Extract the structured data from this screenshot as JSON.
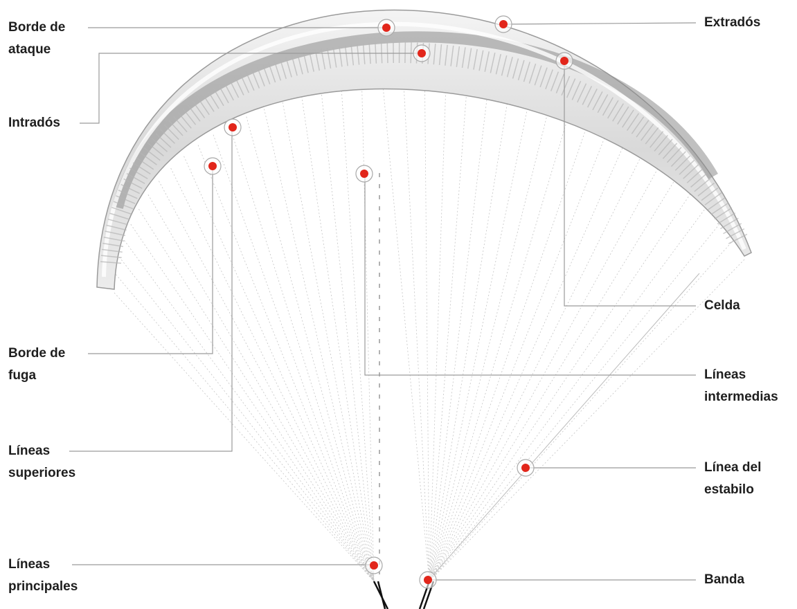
{
  "labels": [
    {
      "lines": [
        "Borde de",
        "ataque"
      ]
    },
    {
      "lines": [
        "Intradós"
      ]
    },
    {
      "lines": [
        "Borde de",
        "fuga"
      ]
    },
    {
      "lines": [
        "Líneas",
        "superiores"
      ]
    },
    {
      "lines": [
        "Líneas",
        "principales"
      ]
    },
    {
      "lines": [
        "Extradós"
      ]
    },
    {
      "lines": [
        "Celda"
      ]
    },
    {
      "lines": [
        "Líneas",
        "intermedias"
      ]
    },
    {
      "lines": [
        "Línea del",
        "estabilo"
      ]
    },
    {
      "lines": [
        "Banda"
      ]
    }
  ]
}
